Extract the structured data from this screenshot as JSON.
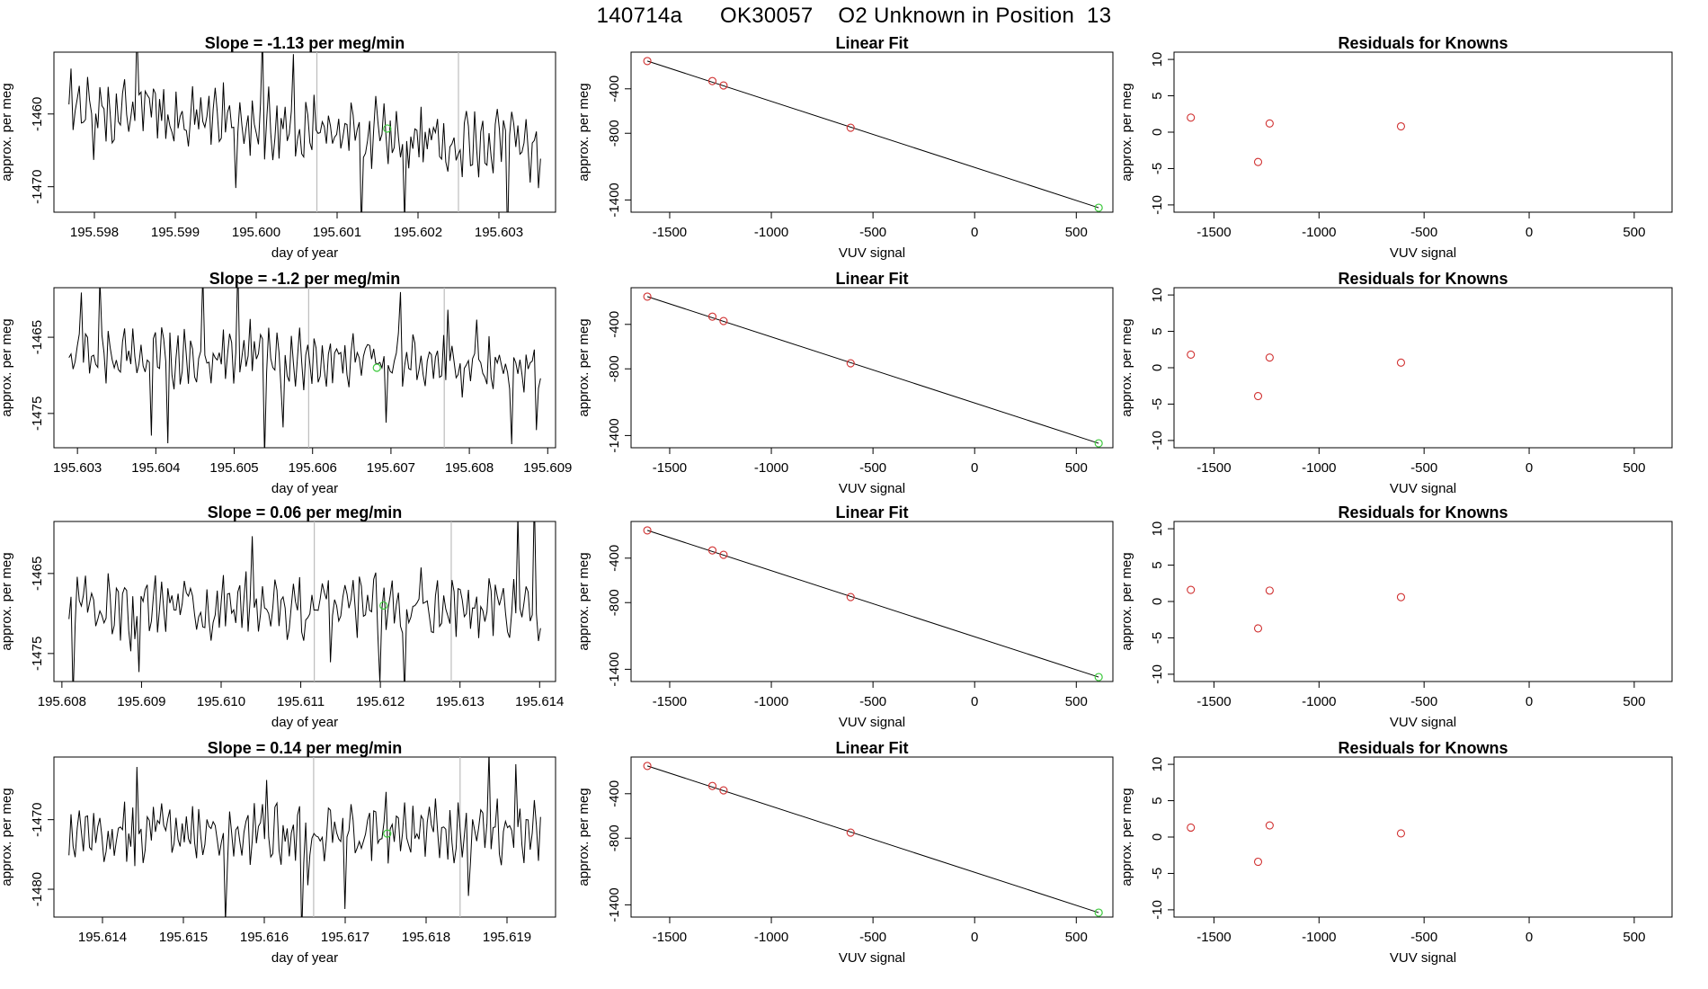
{
  "page_title": "140714a      OK30057    O2 Unknown in Position  13",
  "colors": {
    "series": "#000000",
    "fit_points": "#d03030",
    "unknown_point": "#3cc83c",
    "vline": "#bdbdbd"
  },
  "chart_data": [
    {
      "type": "line",
      "title": "Slope =  -1.13  per meg/min",
      "xlabel": "day of year",
      "ylabel": "approx. per meg",
      "xlim": [
        195.5975,
        195.6037
      ],
      "ylim": [
        -1473.5,
        -1451.5
      ],
      "xticks": [
        "195.598",
        "195.599",
        "195.600",
        "195.601",
        "195.602",
        "195.603"
      ],
      "yticks": [
        "-1460",
        "-1470"
      ],
      "vlines": [
        195.60075,
        195.6025
      ],
      "highlight": {
        "x": 195.60162,
        "y": -1462
      },
      "series_seed": 1,
      "series_base": -1459,
      "series_trend": -6,
      "series_amp": 3.5
    },
    {
      "type": "line",
      "title": "Slope =  -1.2  per meg/min",
      "xlabel": "day of year",
      "ylabel": "approx. per meg",
      "xlim": [
        195.6027,
        195.6091
      ],
      "ylim": [
        -1479.5,
        -1458.5
      ],
      "xticks": [
        "195.603",
        "195.604",
        "195.605",
        "195.606",
        "195.607",
        "195.608",
        "195.609"
      ],
      "yticks": [
        "-1465",
        "-1475"
      ],
      "vlines": [
        195.60595,
        195.60768
      ],
      "highlight": {
        "x": 195.60682,
        "y": -1469
      },
      "series_seed": 2,
      "series_base": -1467,
      "series_trend": -2,
      "series_amp": 2.8
    },
    {
      "type": "line",
      "title": "Slope =  0.06  per meg/min",
      "xlabel": "day of year",
      "ylabel": "approx. per meg",
      "xlim": [
        195.6079,
        195.6142
      ],
      "ylim": [
        -1478.5,
        -1458.5
      ],
      "xticks": [
        "195.608",
        "195.609",
        "195.610",
        "195.611",
        "195.612",
        "195.613",
        "195.614"
      ],
      "yticks": [
        "-1465",
        "-1475"
      ],
      "vlines": [
        195.61117,
        195.61289
      ],
      "highlight": {
        "x": 195.61204,
        "y": -1469
      },
      "series_seed": 3,
      "series_base": -1469,
      "series_trend": 0,
      "series_amp": 3.0
    },
    {
      "type": "line",
      "title": "Slope =  0.14  per meg/min",
      "xlabel": "day of year",
      "ylabel": "approx. per meg",
      "xlim": [
        195.6134,
        195.6196
      ],
      "ylim": [
        -1484,
        -1461
      ],
      "xticks": [
        "195.614",
        "195.615",
        "195.616",
        "195.617",
        "195.618",
        "195.619"
      ],
      "yticks": [
        "-1470",
        "-1480"
      ],
      "vlines": [
        195.61661,
        195.61842
      ],
      "highlight": {
        "x": 195.61752,
        "y": -1472
      },
      "series_seed": 4,
      "series_base": -1472,
      "series_trend": 0,
      "series_amp": 3.5
    },
    {
      "type": "scatter",
      "title": "Linear Fit",
      "xlabel": "VUV signal",
      "ylabel": "approx. per meg",
      "xlim": [
        -1690,
        680
      ],
      "ylim": [
        -1510,
        -70
      ],
      "xticks": [
        "-1500",
        "-1000",
        "-500",
        "0",
        "500"
      ],
      "xtick_values": [
        -1500,
        -1000,
        -500,
        0,
        500
      ],
      "yticks": [
        "-400",
        "-800",
        "-1400"
      ],
      "ytick_values": [
        -400,
        -800,
        -1400
      ],
      "known_x": [
        -1610,
        -1290,
        -1235,
        -610
      ],
      "known_y": [
        -150,
        -330,
        -370,
        -750
      ],
      "unknown": {
        "x": 610,
        "y": -1470
      },
      "fit_line": {
        "x0": -1610,
        "y0": -150,
        "x1": 610,
        "y1": -1470
      }
    },
    {
      "type": "scatter",
      "title": "Linear Fit",
      "xlabel": "VUV signal",
      "ylabel": "approx. per meg",
      "xlim": [
        -1690,
        680
      ],
      "ylim": [
        -1510,
        -70
      ],
      "xticks": [
        "-1500",
        "-1000",
        "-500",
        "0",
        "500"
      ],
      "xtick_values": [
        -1500,
        -1000,
        -500,
        0,
        500
      ],
      "yticks": [
        "-400",
        "-800",
        "-1400"
      ],
      "ytick_values": [
        -400,
        -800,
        -1400
      ],
      "known_x": [
        -1610,
        -1290,
        -1235,
        -610
      ],
      "known_y": [
        -150,
        -330,
        -370,
        -750
      ],
      "unknown": {
        "x": 610,
        "y": -1470
      },
      "fit_line": {
        "x0": -1610,
        "y0": -150,
        "x1": 610,
        "y1": -1470
      }
    },
    {
      "type": "scatter",
      "title": "Linear Fit",
      "xlabel": "VUV signal",
      "ylabel": "approx. per meg",
      "xlim": [
        -1690,
        680
      ],
      "ylim": [
        -1510,
        -70
      ],
      "xticks": [
        "-1500",
        "-1000",
        "-500",
        "0",
        "500"
      ],
      "xtick_values": [
        -1500,
        -1000,
        -500,
        0,
        500
      ],
      "yticks": [
        "-400",
        "-800",
        "-1400"
      ],
      "ytick_values": [
        -400,
        -800,
        -1400
      ],
      "known_x": [
        -1610,
        -1290,
        -1235,
        -610
      ],
      "known_y": [
        -150,
        -330,
        -370,
        -750
      ],
      "unknown": {
        "x": 610,
        "y": -1470
      },
      "fit_line": {
        "x0": -1610,
        "y0": -150,
        "x1": 610,
        "y1": -1470
      }
    },
    {
      "type": "scatter",
      "title": "Linear Fit",
      "xlabel": "VUV signal",
      "ylabel": "approx. per meg",
      "xlim": [
        -1690,
        680
      ],
      "ylim": [
        -1510,
        -70
      ],
      "xticks": [
        "-1500",
        "-1000",
        "-500",
        "0",
        "500"
      ],
      "xtick_values": [
        -1500,
        -1000,
        -500,
        0,
        500
      ],
      "yticks": [
        "-400",
        "-800",
        "-1400"
      ],
      "ytick_values": [
        -400,
        -800,
        -1400
      ],
      "known_x": [
        -1610,
        -1290,
        -1235,
        -610
      ],
      "known_y": [
        -150,
        -330,
        -370,
        -750
      ],
      "unknown": {
        "x": 610,
        "y": -1470
      },
      "fit_line": {
        "x0": -1610,
        "y0": -150,
        "x1": 610,
        "y1": -1470
      }
    },
    {
      "type": "scatter",
      "title": "Residuals for Knowns",
      "xlabel": "VUV signal",
      "ylabel": "approx. per meg",
      "xlim": [
        -1690,
        680
      ],
      "ylim": [
        -11,
        11
      ],
      "xticks": [
        "-1500",
        "-1000",
        "-500",
        "0",
        "500"
      ],
      "xtick_values": [
        -1500,
        -1000,
        -500,
        0,
        500
      ],
      "yticks": [
        "10",
        "5",
        "0",
        "-5",
        "-10"
      ],
      "ytick_values": [
        10,
        5,
        0,
        -5,
        -10
      ],
      "known_x": [
        -1610,
        -1290,
        -1235,
        -610
      ],
      "known_y": [
        2.0,
        -4.1,
        1.2,
        0.8
      ]
    },
    {
      "type": "scatter",
      "title": "Residuals for Knowns",
      "xlabel": "VUV signal",
      "ylabel": "approx. per meg",
      "xlim": [
        -1690,
        680
      ],
      "ylim": [
        -11,
        11
      ],
      "xticks": [
        "-1500",
        "-1000",
        "-500",
        "0",
        "500"
      ],
      "xtick_values": [
        -1500,
        -1000,
        -500,
        0,
        500
      ],
      "yticks": [
        "10",
        "5",
        "0",
        "-5",
        "-10"
      ],
      "ytick_values": [
        10,
        5,
        0,
        -5,
        -10
      ],
      "known_x": [
        -1610,
        -1290,
        -1235,
        -610
      ],
      "known_y": [
        1.8,
        -3.9,
        1.4,
        0.7
      ]
    },
    {
      "type": "scatter",
      "title": "Residuals for Knowns",
      "xlabel": "VUV signal",
      "ylabel": "approx. per meg",
      "xlim": [
        -1690,
        680
      ],
      "ylim": [
        -11,
        11
      ],
      "xticks": [
        "-1500",
        "-1000",
        "-500",
        "0",
        "500"
      ],
      "xtick_values": [
        -1500,
        -1000,
        -500,
        0,
        500
      ],
      "yticks": [
        "10",
        "5",
        "0",
        "-5",
        "-10"
      ],
      "ytick_values": [
        10,
        5,
        0,
        -5,
        -10
      ],
      "known_x": [
        -1610,
        -1290,
        -1235,
        -610
      ],
      "known_y": [
        1.6,
        -3.7,
        1.5,
        0.6
      ]
    },
    {
      "type": "scatter",
      "title": "Residuals for Knowns",
      "xlabel": "VUV signal",
      "ylabel": "approx. per meg",
      "xlim": [
        -1690,
        680
      ],
      "ylim": [
        -11,
        11
      ],
      "xticks": [
        "-1500",
        "-1000",
        "-500",
        "0",
        "500"
      ],
      "xtick_values": [
        -1500,
        -1000,
        -500,
        0,
        500
      ],
      "yticks": [
        "10",
        "5",
        "0",
        "-5",
        "-10"
      ],
      "ytick_values": [
        10,
        5,
        0,
        -5,
        -10
      ],
      "known_x": [
        -1610,
        -1290,
        -1235,
        -610
      ],
      "known_y": [
        1.3,
        -3.4,
        1.6,
        0.5
      ]
    }
  ]
}
